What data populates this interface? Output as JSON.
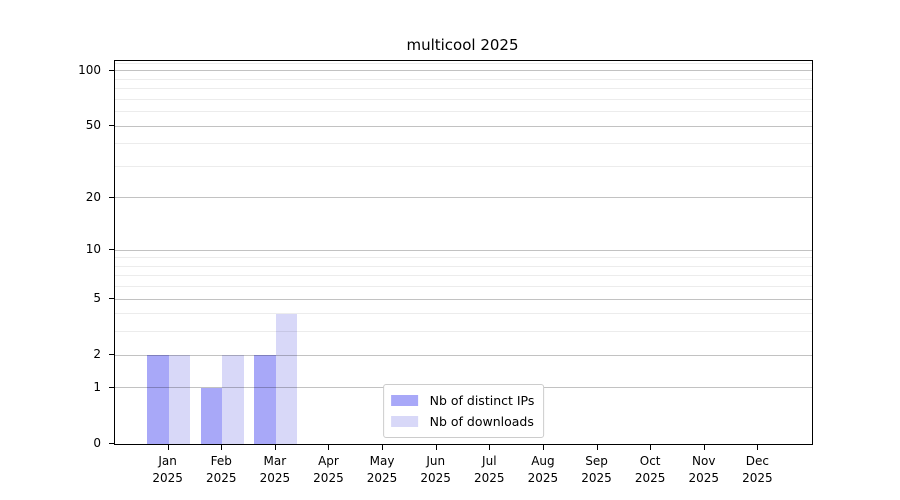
{
  "chart_data": {
    "type": "bar",
    "title": "multicool 2025",
    "categories": [
      "Jan",
      "Feb",
      "Mar",
      "Apr",
      "May",
      "Jun",
      "Jul",
      "Aug",
      "Sep",
      "Oct",
      "Nov",
      "Dec"
    ],
    "category_year": "2025",
    "series": [
      {
        "name": "Nb of distinct IPs",
        "color": "#a8a8f8",
        "values": [
          2,
          1,
          2,
          0,
          0,
          0,
          0,
          0,
          0,
          0,
          0,
          0
        ]
      },
      {
        "name": "Nb of downloads",
        "color": "#d8d8f8",
        "values": [
          2,
          2,
          4,
          0,
          0,
          0,
          0,
          0,
          0,
          0,
          0,
          0
        ]
      }
    ],
    "xlabel": "",
    "ylabel": "",
    "yscale": "log1p",
    "ylim": [
      0,
      113
    ],
    "yticks": [
      0,
      1,
      2,
      5,
      10,
      20,
      50,
      100
    ],
    "yticks_minor": [
      3,
      4,
      6,
      7,
      8,
      9,
      30,
      40,
      60,
      70,
      80,
      90,
      110
    ],
    "grid": "horizontal",
    "legend_position": "bottom-center"
  },
  "colors": {
    "background": "#ffffff",
    "axis_frame": "#000000",
    "text": "#000000",
    "major_grid_rgba": "rgba(0,0,0,0.24)",
    "minor_grid_rgba": "rgba(0,0,0,0.075)",
    "legend_border": "#cccccc"
  }
}
